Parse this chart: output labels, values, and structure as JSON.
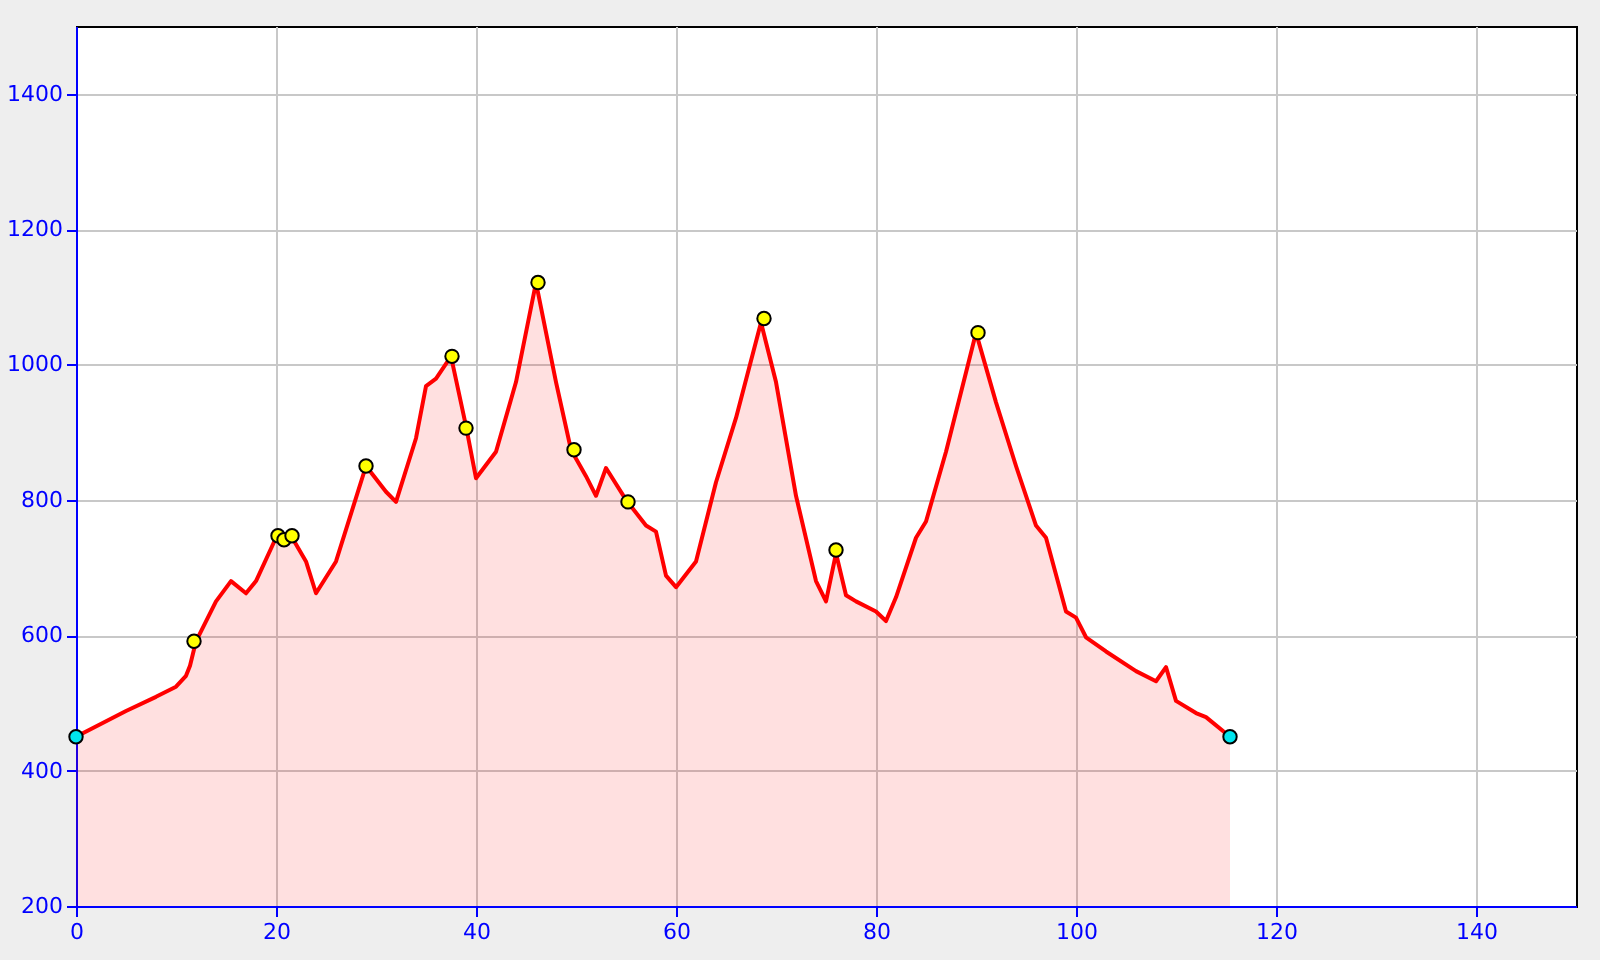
{
  "chart_data": {
    "type": "area",
    "xlim": [
      0,
      150
    ],
    "ylim": [
      200,
      1500
    ],
    "xticks": [
      0,
      20,
      40,
      60,
      80,
      100,
      120,
      140
    ],
    "yticks": [
      200,
      400,
      600,
      800,
      1000,
      1200,
      1400
    ],
    "grid": true,
    "series": [
      {
        "color": "#ff0000",
        "x": [
          0,
          5,
          8,
          10,
          11,
          11.4,
          12,
          14,
          15.5,
          17,
          18,
          20,
          21.5,
          23,
          24,
          26,
          29,
          31,
          32,
          34,
          35,
          36,
          37.5,
          39,
          40,
          42,
          44,
          46,
          48,
          49.5,
          51,
          52,
          53,
          55,
          57,
          58,
          59,
          60,
          62,
          64,
          66,
          68.5,
          70,
          72,
          74,
          75,
          76,
          77,
          78,
          80,
          81,
          82,
          84,
          85,
          87,
          89,
          90,
          92,
          94,
          96,
          97,
          99,
          100,
          101,
          103,
          106,
          108,
          109,
          110,
          112,
          113,
          115.4
        ],
        "values": [
          450,
          488,
          509,
          524,
          540,
          555,
          591,
          650,
          680,
          662,
          680,
          744,
          747,
          709,
          662,
          709,
          850,
          812,
          797,
          891,
          968,
          979,
          1012,
          909,
          832,
          871,
          974,
          1121,
          974,
          874,
          835,
          806,
          847,
          800,
          762,
          753,
          688,
          671,
          709,
          826,
          921,
          1062,
          974,
          806,
          680,
          650,
          721,
          659,
          650,
          635,
          621,
          656,
          744,
          768,
          871,
          988,
          1047,
          944,
          850,
          762,
          744,
          635,
          626,
          597,
          576,
          547,
          532,
          553,
          503,
          485,
          479,
          450
        ]
      },
      {
        "type": "scatter",
        "color": "#ffff00",
        "x": [
          11.8,
          20.2,
          20.8,
          21.6,
          29,
          37.6,
          39,
          46.2,
          49.8,
          55.2,
          68.8,
          76,
          90.2
        ],
        "values": [
          591,
          747,
          741,
          747,
          850,
          1012,
          906,
          1121,
          874,
          797,
          1068,
          726,
          1047
        ]
      },
      {
        "type": "scatter",
        "color": "#00e5ee",
        "x": [
          0,
          115.4
        ],
        "values": [
          450,
          450
        ]
      }
    ]
  }
}
